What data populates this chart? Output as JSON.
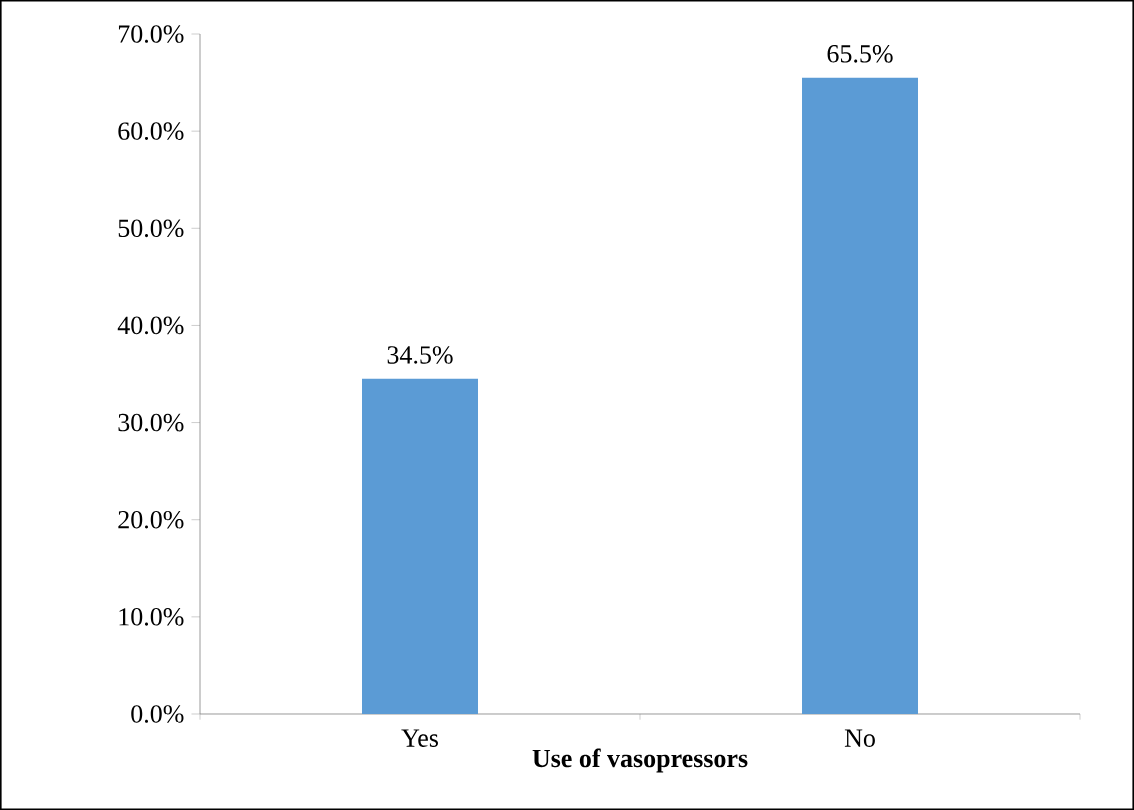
{
  "chart_data": {
    "type": "bar",
    "xlabel": "Use of vasopressors",
    "categories": [
      "Yes",
      "No"
    ],
    "values": [
      34.5,
      65.5
    ],
    "color": "#5b9bd5",
    "value_labels": [
      "34.5%",
      "65.5%"
    ],
    "ylim": [
      0,
      70
    ],
    "yticks": [
      {
        "value": 0,
        "label": "0.0%"
      },
      {
        "value": 10,
        "label": "10.0%"
      },
      {
        "value": 20,
        "label": "20.0%"
      },
      {
        "value": 30,
        "label": "30.0%"
      },
      {
        "value": 40,
        "label": "40.0%"
      },
      {
        "value": 50,
        "label": "50.0%"
      },
      {
        "value": 60,
        "label": "60.0%"
      },
      {
        "value": 70,
        "label": "70.0%"
      }
    ],
    "grid": false
  }
}
